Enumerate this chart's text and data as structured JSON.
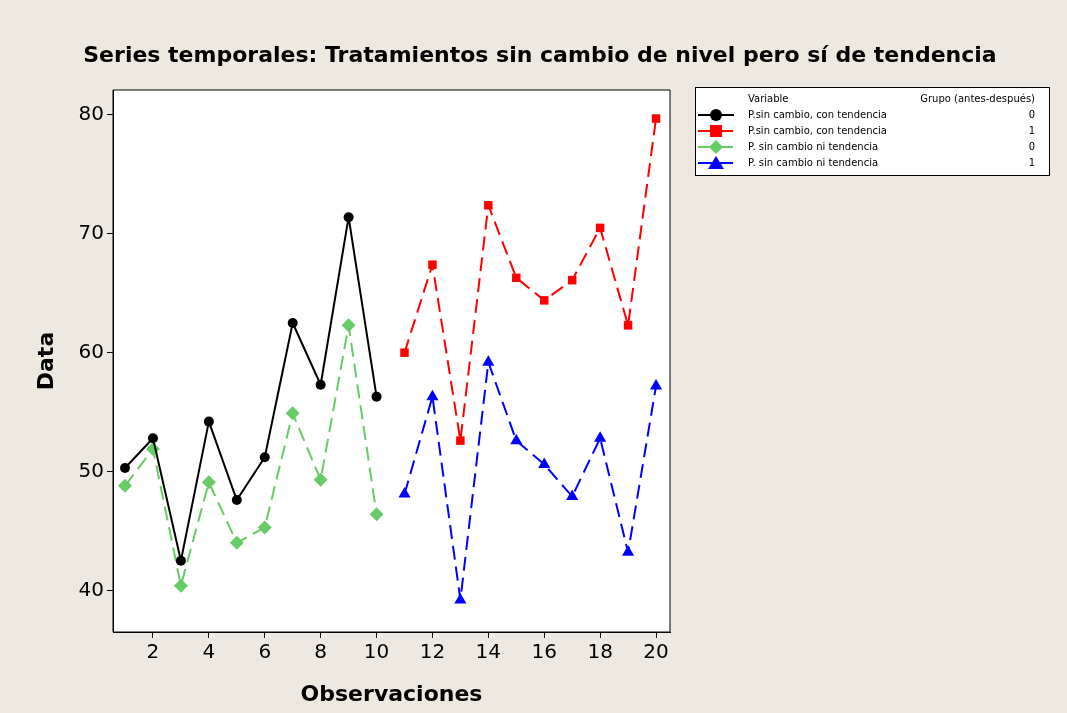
{
  "chart_data": {
    "type": "line",
    "title": "Series temporales: Tratamientos sin cambio de nivel pero sí de tendencia",
    "xlabel": "Observaciones",
    "ylabel": "Data",
    "legend_title": "Variable",
    "legend": "top right",
    "grid": false,
    "xlim": [
      0.57,
      20.5
    ],
    "xticks": [
      2,
      4,
      6,
      8,
      10,
      12,
      14,
      16,
      18,
      20
    ],
    "ylim": [
      36.5,
      82.1
    ],
    "yticks": [
      40,
      50,
      60,
      70,
      80
    ],
    "annotations": [
      "Grupo (antes-después)",
      "0",
      "1",
      "0",
      "1"
    ],
    "series": [
      {
        "name": "P.sin cambio, con tendencia",
        "color": "#000000",
        "marker": "circle",
        "line_style": "solid",
        "x": [
          1,
          2,
          3,
          4,
          5,
          6,
          7,
          8,
          9,
          10
        ],
        "values": [
          50.3,
          52.8,
          42.5,
          54.2,
          47.6,
          51.2,
          62.5,
          57.3,
          71.4,
          56.3
        ]
      },
      {
        "name": "P.sin cambio, con tendencia",
        "color": "#ff0000",
        "marker": "square",
        "line_style": "dashed",
        "x": [
          11,
          12,
          13,
          14,
          15,
          16,
          17,
          18,
          19,
          20
        ],
        "values": [
          60.0,
          67.4,
          52.6,
          72.4,
          66.3,
          64.4,
          66.1,
          70.5,
          62.3,
          79.7
        ]
      },
      {
        "name": "P. sin cambio ni tendencia",
        "color": "#66cc66",
        "marker": "diamond",
        "line_style": "dashed",
        "x": [
          1,
          2,
          3,
          4,
          5,
          6,
          7,
          8,
          9,
          10
        ],
        "values": [
          48.8,
          51.9,
          40.4,
          49.1,
          44.0,
          45.3,
          54.9,
          49.3,
          62.3,
          46.4
        ]
      },
      {
        "name": "P. sin cambio ni tendencia",
        "color": "#0000ff",
        "marker": "triangle",
        "line_style": "dashed",
        "x": [
          11,
          12,
          13,
          14,
          15,
          16,
          17,
          18,
          19,
          20
        ],
        "values": [
          48.1,
          56.3,
          39.2,
          59.2,
          52.6,
          50.6,
          47.9,
          52.8,
          43.2,
          57.2
        ]
      }
    ]
  }
}
